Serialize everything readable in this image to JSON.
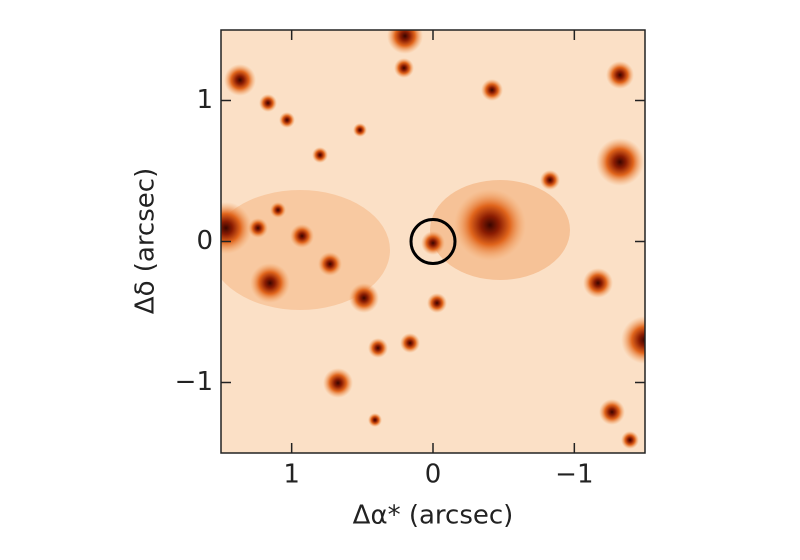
{
  "chart_data": {
    "type": "image",
    "x_label": "Δα* (arcsec)",
    "y_label": "Δδ (arcsec)",
    "xlim": [
      1.5,
      -1.5
    ],
    "ylim": [
      -1.5,
      1.5
    ],
    "xticks": [
      1,
      0,
      {
        "value": -1,
        "label": "−1"
      }
    ],
    "yticks": [
      {
        "value": -1,
        "label": "−1"
      },
      0,
      1
    ],
    "target": {
      "x": 0,
      "y": 0
    },
    "color": "#000000"
  }
}
